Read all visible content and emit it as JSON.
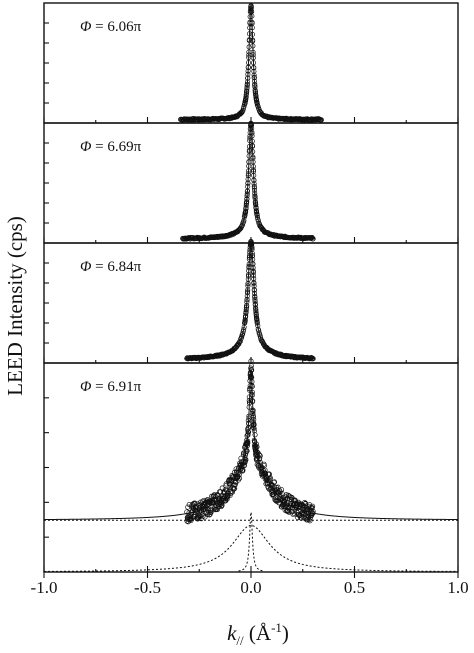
{
  "chart_data": {
    "type": "scatter",
    "xlabel": "k// (Å-1)",
    "xlabel_main": "k",
    "xlabel_sub": "//",
    "xlabel_units_open": " (Å",
    "xlabel_units_sup": "-1",
    "xlabel_units_close": ")",
    "ylabel": "LEED Intensity (cps)",
    "xlim": [
      -1.0,
      1.0
    ],
    "x_tick_labels": [
      "-1.0",
      "-0.5",
      "0.0",
      "0.5",
      "1.0"
    ],
    "x_tick_values": [
      -1.0,
      -0.5,
      0.0,
      0.5,
      1.0
    ],
    "y_ticks_labeled": false,
    "grid": false,
    "legend": "none",
    "panels": [
      {
        "label": "Φ = 6.06π",
        "phi_symbol": "Φ",
        "phi_value": " = 6.06π",
        "ylim": [
          0,
          1.05
        ],
        "baseline": 0.03,
        "data_range": [
          -0.34,
          0.34
        ],
        "broad": null,
        "sharp": {
          "height": 1.0,
          "hwhm": 0.012
        }
      },
      {
        "label": "Φ = 6.69π",
        "phi_symbol": "Φ",
        "phi_value": " = 6.69π",
        "ylim": [
          0,
          1.05
        ],
        "baseline": 0.035,
        "data_range": [
          -0.33,
          0.3
        ],
        "broad": {
          "height": 0.03,
          "hwhm": 0.12
        },
        "sharp": {
          "height": 0.98,
          "hwhm": 0.014
        }
      },
      {
        "label": "Φ = 6.84π",
        "phi_symbol": "Φ",
        "phi_value": " = 6.84π",
        "ylim": [
          0,
          1.05
        ],
        "baseline": 0.03,
        "data_range": [
          -0.31,
          0.3
        ],
        "broad": {
          "height": 0.08,
          "hwhm": 0.1
        },
        "sharp": {
          "height": 0.95,
          "hwhm": 0.018
        }
      },
      {
        "label": "Φ = 6.91π",
        "phi_symbol": "Φ",
        "phi_value": " = 6.91π",
        "ylim": [
          0,
          1.05
        ],
        "baseline": 0.26,
        "data_range": [
          -0.31,
          0.3
        ],
        "broad": {
          "height": 0.3,
          "hwhm": 0.11
        },
        "sharp": {
          "height": 0.46,
          "hwhm": 0.01
        },
        "show_components": true
      }
    ]
  }
}
